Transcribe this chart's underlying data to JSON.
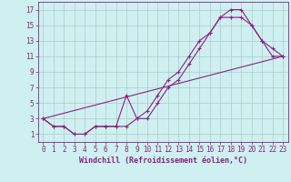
{
  "xlabel": "Windchill (Refroidissement éolien,°C)",
  "bg_color": "#cff0f0",
  "grid_color": "#b0c8c8",
  "line_color": "#882288",
  "spine_color": "#882288",
  "xlim": [
    -0.5,
    23.5
  ],
  "ylim": [
    0,
    18
  ],
  "xticks": [
    0,
    1,
    2,
    3,
    4,
    5,
    6,
    7,
    8,
    9,
    10,
    11,
    12,
    13,
    14,
    15,
    16,
    17,
    18,
    19,
    20,
    21,
    22,
    23
  ],
  "yticks": [
    1,
    3,
    5,
    7,
    9,
    11,
    13,
    15,
    17
  ],
  "line1_x": [
    0,
    1,
    2,
    3,
    4,
    5,
    6,
    7,
    8,
    9,
    10,
    11,
    12,
    13,
    14,
    15,
    16,
    17,
    18,
    19,
    20,
    21,
    22,
    23
  ],
  "line1_y": [
    3,
    2,
    2,
    1,
    1,
    2,
    2,
    2,
    2,
    3,
    4,
    6,
    8,
    9,
    11,
    13,
    14,
    16,
    17,
    17,
    15,
    13,
    11,
    11
  ],
  "line2_x": [
    0,
    1,
    2,
    3,
    4,
    5,
    6,
    7,
    8,
    9,
    10,
    11,
    12,
    13,
    14,
    15,
    16,
    17,
    18,
    19,
    20,
    21,
    22,
    23
  ],
  "line2_y": [
    3,
    2,
    2,
    1,
    1,
    2,
    2,
    2,
    6,
    3,
    3,
    5,
    7,
    8,
    10,
    12,
    14,
    16,
    16,
    16,
    15,
    13,
    12,
    11
  ],
  "line3_x": [
    0,
    23
  ],
  "line3_y": [
    3,
    11
  ]
}
